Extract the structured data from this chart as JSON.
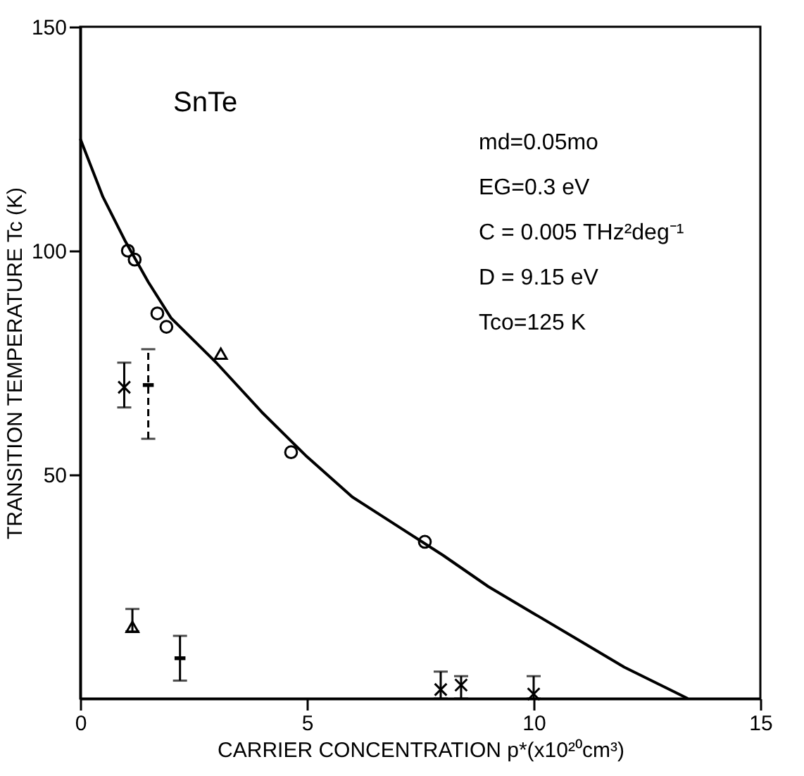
{
  "chart_data": {
    "type": "scatter",
    "xlabel": "CARRIER CONCENTRATION p*(x10²⁰cm³)",
    "ylabel": "TRANSITION TEMPERATURE Tc (K)",
    "xlim": [
      0,
      15
    ],
    "ylim": [
      0,
      150
    ],
    "xticks": [
      0,
      5,
      10,
      15
    ],
    "yticks": [
      50,
      100,
      150
    ],
    "grid": false,
    "annotations": [
      "SnTe",
      "md=0.05mo",
      "EG=0.3 eV",
      "C = 0.005 THz²deg⁻¹",
      "D = 9.15 eV",
      "Tco=125 K"
    ],
    "series": [
      {
        "marker": "circle",
        "color": "#000000",
        "x": [
          1.05,
          1.2,
          1.7,
          1.9,
          4.65,
          7.6
        ],
        "values": [
          100,
          98,
          86,
          83,
          55,
          35
        ]
      },
      {
        "marker": "triangle",
        "color": "#000000",
        "x": [
          3.1,
          1.15
        ],
        "values": [
          77,
          16
        ],
        "errors": [
          null,
          [
            15,
            20
          ]
        ]
      },
      {
        "marker": "cross",
        "color": "#000000",
        "x": [
          0.97
        ],
        "values": [
          69.5
        ],
        "errors": [
          [
            65,
            75
          ]
        ]
      },
      {
        "line_style": "dashed",
        "color": "#000000",
        "x": [
          1.5
        ],
        "values": [
          70
        ],
        "errors": [
          [
            58,
            78
          ]
        ]
      },
      {
        "color": "#000000",
        "x": [
          2.2
        ],
        "values": [
          9
        ],
        "errors": [
          [
            4,
            14
          ]
        ]
      },
      {
        "marker": "cross",
        "color": "#000000",
        "x": [
          7.95,
          8.4,
          10
        ],
        "values": [
          2,
          3,
          1
        ],
        "errors": [
          [
            0,
            6
          ],
          [
            0,
            5
          ],
          [
            0,
            5
          ]
        ]
      },
      {
        "type": "line",
        "color": "#000000",
        "line_style": "solid",
        "x": [
          0,
          0.5,
          1,
          1.5,
          2,
          3,
          4,
          5,
          6,
          7,
          8,
          9,
          10,
          11,
          12,
          13,
          13.4
        ],
        "values": [
          125,
          112,
          102,
          93,
          85,
          75,
          64,
          54,
          45,
          38.5,
          32,
          25,
          19,
          13,
          7,
          2,
          0
        ]
      }
    ]
  }
}
